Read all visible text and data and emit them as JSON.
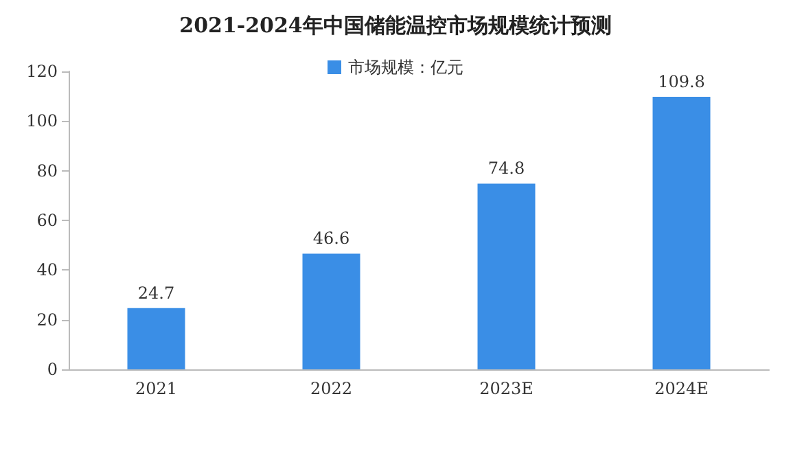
{
  "chart_data": {
    "type": "bar",
    "title": "2021-2024年中国储能温控市场规模统计预测",
    "categories": [
      "2021",
      "2022",
      "2023E",
      "2024E"
    ],
    "series": [
      {
        "name": "市场规模：亿元",
        "color": "#3a8ee6",
        "values": [
          24.7,
          46.6,
          74.8,
          109.8
        ]
      }
    ],
    "ylim": [
      0,
      120
    ],
    "yticks": [
      0,
      20,
      40,
      60,
      80,
      100,
      120
    ],
    "grid": false,
    "legend": "top",
    "data_labels": true
  }
}
